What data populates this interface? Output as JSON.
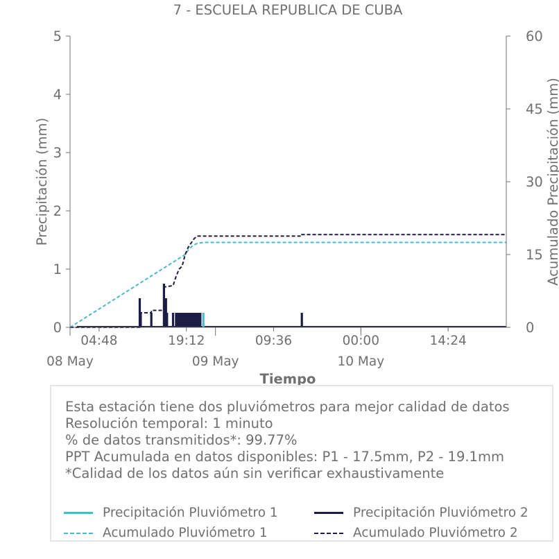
{
  "chart_data": {
    "type": "bar+line",
    "title": "7 - ESCUELA REPUBLICA DE CUBA",
    "xlabel": "Tiempo",
    "ylabel_left": "Precipitación (mm)",
    "ylabel_right": "Acumulado Precipitación (mm)",
    "x_range": [
      "2024-05-08T00:00",
      "2024-05-11T00:00"
    ],
    "y_left_range": [
      0,
      5
    ],
    "y_right_range": [
      0,
      60
    ],
    "y_left_ticks": [
      "0",
      "1",
      "2",
      "3",
      "4",
      "5"
    ],
    "y_right_ticks": [
      "0",
      "15",
      "30",
      "45",
      "60"
    ],
    "x_time_ticks": [
      {
        "t": "2024-05-08T04:48",
        "label": "04:48"
      },
      {
        "t": "2024-05-08T19:12",
        "label": "19:12"
      },
      {
        "t": "2024-05-09T09:36",
        "label": "09:36"
      },
      {
        "t": "2024-05-10T00:00",
        "label": "00:00"
      },
      {
        "t": "2024-05-10T14:24",
        "label": "14:24"
      }
    ],
    "x_date_ticks": [
      {
        "t": "2024-05-08T00:00",
        "label": "08 May"
      },
      {
        "t": "2024-05-09T00:00",
        "label": "09 May"
      },
      {
        "t": "2024-05-10T00:00",
        "label": "10 May"
      }
    ],
    "grid": false,
    "legend_placement": "bottom",
    "series": [
      {
        "name": "Precipitación Pluviómetro 1",
        "axis": "left",
        "style": "bars",
        "color": "#4db8c8",
        "points": [
          {
            "t": "2024-05-08T19:10",
            "v": 0.25
          },
          {
            "t": "2024-05-08T19:30",
            "v": 0.25
          },
          {
            "t": "2024-05-08T20:00",
            "v": 0.25
          },
          {
            "t": "2024-05-08T20:30",
            "v": 0.25
          },
          {
            "t": "2024-05-08T21:00",
            "v": 0.25
          },
          {
            "t": "2024-05-08T21:30",
            "v": 0.25
          },
          {
            "t": "2024-05-08T22:00",
            "v": 0.25
          }
        ]
      },
      {
        "name": "Precipitación Pluviómetro 2",
        "axis": "left",
        "style": "bars",
        "color": "#1c1d45",
        "points": [
          {
            "t": "2024-05-08T11:30",
            "v": 0.5
          },
          {
            "t": "2024-05-08T11:40",
            "v": 0.25
          },
          {
            "t": "2024-05-08T13:25",
            "v": 0.25
          },
          {
            "t": "2024-05-08T15:30",
            "v": 0.75
          },
          {
            "t": "2024-05-08T15:50",
            "v": 0.5
          },
          {
            "t": "2024-05-08T16:00",
            "v": 0.25
          },
          {
            "t": "2024-05-08T17:00",
            "v": 0.25
          },
          {
            "t": "2024-05-08T17:30",
            "v": 0.25
          },
          {
            "t": "2024-05-08T17:40",
            "v": 0.25
          },
          {
            "t": "2024-05-08T17:50",
            "v": 0.25
          },
          {
            "t": "2024-05-08T18:00",
            "v": 0.25
          },
          {
            "t": "2024-05-08T18:10",
            "v": 0.25
          },
          {
            "t": "2024-05-08T18:20",
            "v": 0.25
          },
          {
            "t": "2024-05-08T18:30",
            "v": 0.25
          },
          {
            "t": "2024-05-08T18:40",
            "v": 0.25
          },
          {
            "t": "2024-05-08T19:00",
            "v": 0.25
          },
          {
            "t": "2024-05-08T19:10",
            "v": 0.25
          },
          {
            "t": "2024-05-08T19:20",
            "v": 0.25
          },
          {
            "t": "2024-05-08T19:30",
            "v": 0.25
          },
          {
            "t": "2024-05-08T19:40",
            "v": 0.25
          },
          {
            "t": "2024-05-08T19:50",
            "v": 0.25
          },
          {
            "t": "2024-05-08T20:00",
            "v": 0.25
          },
          {
            "t": "2024-05-08T20:10",
            "v": 0.25
          },
          {
            "t": "2024-05-08T20:20",
            "v": 0.25
          },
          {
            "t": "2024-05-08T20:30",
            "v": 0.25
          },
          {
            "t": "2024-05-08T20:40",
            "v": 0.25
          },
          {
            "t": "2024-05-08T20:50",
            "v": 0.25
          },
          {
            "t": "2024-05-08T21:00",
            "v": 0.25
          },
          {
            "t": "2024-05-08T21:10",
            "v": 0.25
          },
          {
            "t": "2024-05-08T21:20",
            "v": 0.25
          },
          {
            "t": "2024-05-08T21:30",
            "v": 0.25
          },
          {
            "t": "2024-05-09T14:15",
            "v": 0.25
          }
        ]
      },
      {
        "name": "Acumulado Pluviómetro 1",
        "axis": "right",
        "style": "dashed",
        "color": "#4db8c8",
        "points": [
          {
            "t": "2024-05-08T00:00",
            "v": 0
          },
          {
            "t": "2024-05-08T19:00",
            "v": 15
          },
          {
            "t": "2024-05-08T19:40",
            "v": 16.2
          },
          {
            "t": "2024-05-08T20:20",
            "v": 16.9
          },
          {
            "t": "2024-05-08T21:00",
            "v": 17.3
          },
          {
            "t": "2024-05-08T22:00",
            "v": 17.5
          },
          {
            "t": "2024-05-11T00:00",
            "v": 17.5
          }
        ]
      },
      {
        "name": "Acumulado Pluviómetro 2",
        "axis": "right",
        "style": "dashed",
        "color": "#1c1d45",
        "points": [
          {
            "t": "2024-05-08T00:00",
            "v": 0
          },
          {
            "t": "2024-05-08T11:30",
            "v": 0
          },
          {
            "t": "2024-05-08T11:30",
            "v": 3
          },
          {
            "t": "2024-05-08T13:25",
            "v": 3
          },
          {
            "t": "2024-05-08T13:25",
            "v": 3.5
          },
          {
            "t": "2024-05-08T15:30",
            "v": 3.5
          },
          {
            "t": "2024-05-08T15:30",
            "v": 8.3
          },
          {
            "t": "2024-05-08T17:00",
            "v": 8.6
          },
          {
            "t": "2024-05-08T17:30",
            "v": 10.5
          },
          {
            "t": "2024-05-08T18:00",
            "v": 12
          },
          {
            "t": "2024-05-08T18:30",
            "v": 12.6
          },
          {
            "t": "2024-05-08T19:00",
            "v": 15
          },
          {
            "t": "2024-05-08T19:30",
            "v": 16.5
          },
          {
            "t": "2024-05-08T20:00",
            "v": 17.4
          },
          {
            "t": "2024-05-08T20:30",
            "v": 18.3
          },
          {
            "t": "2024-05-08T21:00",
            "v": 18.8
          },
          {
            "t": "2024-05-09T14:15",
            "v": 18.8
          },
          {
            "t": "2024-05-09T14:15",
            "v": 19.1
          },
          {
            "t": "2024-05-11T00:00",
            "v": 19.1
          }
        ]
      }
    ]
  },
  "info": {
    "lines": [
      "Esta estación tiene dos pluviómetros para mejor calidad de datos",
      "Resolución temporal: 1 minuto",
      "% de datos transmitidos*: 99.77%",
      "PPT Acumulada en datos disponibles: P1 - 17.5mm, P2 - 19.1mm",
      "*Calidad de los datos aún sin verificar exhaustivamente"
    ]
  },
  "legend": {
    "items": [
      {
        "label": "Precipitación Pluviómetro 1",
        "color": "#4db8c8",
        "style": "solid"
      },
      {
        "label": "Precipitación Pluviómetro 2",
        "color": "#1c1d45",
        "style": "solid"
      },
      {
        "label": "Acumulado Pluviómetro 1",
        "color": "#4db8c8",
        "style": "dashed"
      },
      {
        "label": "Acumulado Pluviómetro 2",
        "color": "#1c1d45",
        "style": "dashed"
      }
    ]
  }
}
